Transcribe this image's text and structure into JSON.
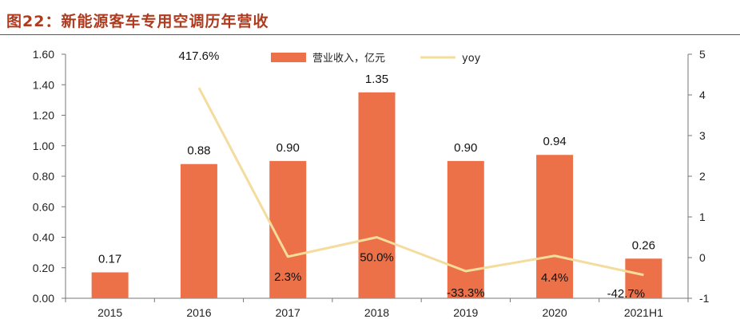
{
  "title": "图22：新能源客车专用空调历年营收",
  "chart_data": {
    "type": "bar+line",
    "categories": [
      "2015",
      "2016",
      "2017",
      "2018",
      "2019",
      "2020",
      "2021H1"
    ],
    "series": [
      {
        "name": "营业收入，亿元",
        "type": "bar",
        "axis": "left",
        "values": [
          0.17,
          0.88,
          0.9,
          1.35,
          0.9,
          0.94,
          0.26
        ],
        "labels": [
          "0.17",
          "0.88",
          "0.90",
          "1.35",
          "0.90",
          "0.94",
          "0.26"
        ]
      },
      {
        "name": "yoy",
        "type": "line",
        "axis": "right",
        "values": [
          null,
          4.176,
          0.023,
          0.5,
          -0.333,
          0.044,
          -0.427
        ],
        "labels": [
          "",
          "417.6%",
          "2.3%",
          "50.0%",
          "-33.3%",
          "4.4%",
          "-42.7%"
        ]
      }
    ],
    "y_left": {
      "min": 0,
      "max": 1.6,
      "ticks": [
        "0.00",
        "0.20",
        "0.40",
        "0.60",
        "0.80",
        "1.00",
        "1.20",
        "1.40",
        "1.60"
      ],
      "tick_values": [
        0,
        0.2,
        0.4,
        0.6,
        0.8,
        1.0,
        1.2,
        1.4,
        1.6
      ]
    },
    "y_right": {
      "min": -1,
      "max": 5,
      "ticks": [
        "-1",
        "0",
        "1",
        "2",
        "3",
        "4",
        "5"
      ],
      "tick_values": [
        -1,
        0,
        1,
        2,
        3,
        4,
        5
      ]
    },
    "legend_position": "top-center",
    "grid": false,
    "colors": {
      "bar": "#ed7148",
      "line": "#f3dc9c",
      "title": "#b03a1e"
    }
  }
}
